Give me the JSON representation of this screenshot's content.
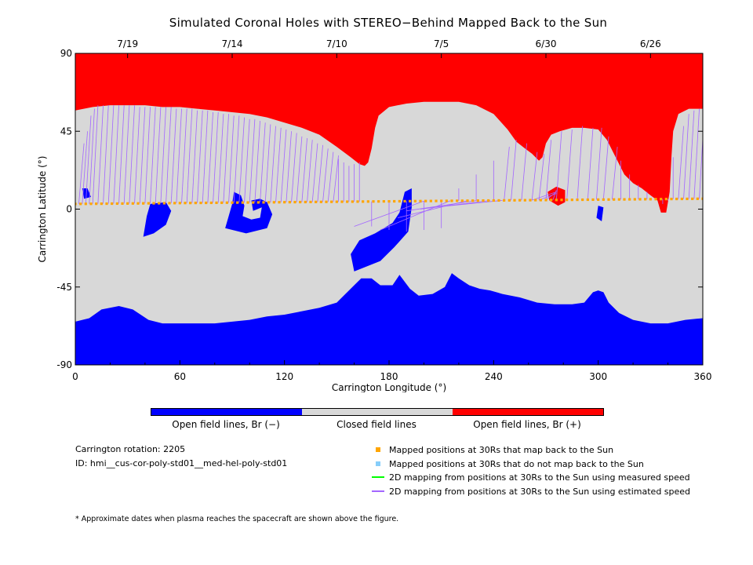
{
  "chart_data": {
    "type": "heatmap",
    "title": "Simulated Coronal Holes with STEREO−Behind Mapped Back to the Sun",
    "xlabel": "Carrington Longitude (°)",
    "ylabel": "Carrington Latitude (°)",
    "xlim": [
      0,
      360
    ],
    "ylim": [
      -90,
      90
    ],
    "x_ticks": [
      0,
      60,
      120,
      180,
      240,
      300,
      360
    ],
    "y_ticks": [
      90,
      45,
      0,
      -45,
      -90
    ],
    "top_axis_dates": [
      {
        "label": "7/19",
        "longitude": 30
      },
      {
        "label": "7/14",
        "longitude": 90
      },
      {
        "label": "7/10",
        "longitude": 150
      },
      {
        "label": "7/5",
        "longitude": 210
      },
      {
        "label": "6/30",
        "longitude": 270
      },
      {
        "label": "6/26",
        "longitude": 330
      }
    ],
    "categories": [
      "Open field lines, Br (−)",
      "Closed field lines",
      "Open field lines, Br (+)"
    ],
    "category_colors": [
      "#0000ff",
      "#d8d8d8",
      "#ff0000"
    ],
    "north_boundary": [
      [
        0,
        57
      ],
      [
        10,
        59
      ],
      [
        20,
        60
      ],
      [
        30,
        60
      ],
      [
        40,
        60
      ],
      [
        50,
        59
      ],
      [
        60,
        59
      ],
      [
        70,
        58
      ],
      [
        80,
        57
      ],
      [
        90,
        56
      ],
      [
        100,
        55
      ],
      [
        110,
        53
      ],
      [
        120,
        50
      ],
      [
        130,
        47
      ],
      [
        140,
        43
      ],
      [
        150,
        36
      ],
      [
        158,
        30
      ],
      [
        163,
        26
      ],
      [
        166,
        25
      ],
      [
        168,
        27
      ],
      [
        170,
        35
      ],
      [
        172,
        47
      ],
      [
        174,
        54
      ],
      [
        180,
        59
      ],
      [
        190,
        61
      ],
      [
        200,
        62
      ],
      [
        210,
        62
      ],
      [
        220,
        62
      ],
      [
        230,
        60
      ],
      [
        240,
        55
      ],
      [
        248,
        46
      ],
      [
        253,
        39
      ],
      [
        258,
        35
      ],
      [
        262,
        32
      ],
      [
        266,
        28
      ],
      [
        268,
        30
      ],
      [
        270,
        38
      ],
      [
        273,
        43
      ],
      [
        278,
        45
      ],
      [
        285,
        47
      ],
      [
        292,
        47
      ],
      [
        300,
        46
      ],
      [
        305,
        40
      ],
      [
        310,
        30
      ],
      [
        315,
        20
      ],
      [
        320,
        15
      ],
      [
        325,
        12
      ],
      [
        330,
        8
      ],
      [
        334,
        5
      ],
      [
        336,
        -2
      ],
      [
        339,
        -2
      ],
      [
        341,
        10
      ],
      [
        342,
        30
      ],
      [
        343,
        45
      ],
      [
        346,
        55
      ],
      [
        352,
        58
      ],
      [
        360,
        58
      ]
    ],
    "south_boundary": [
      [
        0,
        -65
      ],
      [
        8,
        -63
      ],
      [
        15,
        -58
      ],
      [
        25,
        -56
      ],
      [
        33,
        -58
      ],
      [
        42,
        -64
      ],
      [
        50,
        -66
      ],
      [
        60,
        -66
      ],
      [
        70,
        -66
      ],
      [
        80,
        -66
      ],
      [
        90,
        -65
      ],
      [
        100,
        -64
      ],
      [
        110,
        -62
      ],
      [
        120,
        -61
      ],
      [
        130,
        -59
      ],
      [
        140,
        -57
      ],
      [
        150,
        -54
      ],
      [
        160,
        -44
      ],
      [
        164,
        -40
      ],
      [
        170,
        -40
      ],
      [
        175,
        -44
      ],
      [
        182,
        -44
      ],
      [
        186,
        -38
      ],
      [
        192,
        -46
      ],
      [
        197,
        -50
      ],
      [
        205,
        -49
      ],
      [
        212,
        -45
      ],
      [
        216,
        -37
      ],
      [
        220,
        -40
      ],
      [
        226,
        -44
      ],
      [
        232,
        -46
      ],
      [
        238,
        -47
      ],
      [
        245,
        -49
      ],
      [
        255,
        -51
      ],
      [
        265,
        -54
      ],
      [
        275,
        -55
      ],
      [
        285,
        -55
      ],
      [
        292,
        -54
      ],
      [
        297,
        -48
      ],
      [
        300,
        -47
      ],
      [
        303,
        -48
      ],
      [
        306,
        -54
      ],
      [
        312,
        -60
      ],
      [
        320,
        -64
      ],
      [
        330,
        -66
      ],
      [
        340,
        -66
      ],
      [
        350,
        -64
      ],
      [
        360,
        -63
      ]
    ],
    "positive_patches": [
      [
        [
          271,
          10
        ],
        [
          276,
          13
        ],
        [
          281,
          11
        ],
        [
          281,
          4
        ],
        [
          277,
          2
        ],
        [
          272,
          5
        ]
      ]
    ],
    "negative_patches": [
      [
        [
          4,
          12
        ],
        [
          7,
          12
        ],
        [
          9,
          7
        ],
        [
          5,
          6
        ]
      ],
      [
        [
          43,
          3
        ],
        [
          52,
          4
        ],
        [
          55,
          -1
        ],
        [
          52,
          -9
        ],
        [
          45,
          -14
        ],
        [
          39,
          -16
        ],
        [
          40,
          -10
        ],
        [
          41,
          -4
        ]
      ],
      [
        [
          91,
          10
        ],
        [
          95,
          8
        ],
        [
          97,
          2
        ],
        [
          96,
          -4
        ],
        [
          101,
          -6
        ],
        [
          106,
          -5
        ],
        [
          107,
          1
        ],
        [
          102,
          -1
        ],
        [
          101,
          5
        ],
        [
          106,
          6
        ],
        [
          110,
          4
        ],
        [
          113,
          -3
        ],
        [
          110,
          -11
        ],
        [
          98,
          -14
        ],
        [
          86,
          -11
        ],
        [
          88,
          -4
        ],
        [
          90,
          3
        ]
      ],
      [
        [
          160,
          -36
        ],
        [
          175,
          -30
        ],
        [
          183,
          -22
        ],
        [
          191,
          -13
        ],
        [
          193,
          1
        ],
        [
          193,
          12
        ],
        [
          189,
          10
        ],
        [
          186,
          -2
        ],
        [
          182,
          -8
        ],
        [
          172,
          -14
        ],
        [
          163,
          -18
        ],
        [
          158,
          -26
        ]
      ],
      [
        [
          300,
          2
        ],
        [
          303,
          1
        ],
        [
          302,
          -7
        ],
        [
          299,
          -5
        ]
      ]
    ],
    "mapped_positions_30Rs": {
      "latitude_start": 3.0,
      "latitude_end": 6.0,
      "longitude_step": 3
    },
    "mapping_lines_estimated_speed": [
      [
        0,
        30
      ],
      [
        2,
        38
      ],
      [
        4,
        45
      ],
      [
        6,
        54
      ],
      [
        8,
        58
      ],
      [
        10,
        60
      ],
      [
        13,
        60
      ],
      [
        16,
        60
      ],
      [
        19,
        60
      ],
      [
        22,
        60
      ],
      [
        25,
        60
      ],
      [
        28,
        60
      ],
      [
        31,
        60
      ],
      [
        34,
        59
      ],
      [
        37,
        59
      ],
      [
        40,
        59
      ],
      [
        43,
        59
      ],
      [
        46,
        59
      ],
      [
        49,
        59
      ],
      [
        52,
        59
      ],
      [
        55,
        58
      ],
      [
        58,
        58
      ],
      [
        61,
        58
      ],
      [
        64,
        58
      ],
      [
        67,
        57
      ],
      [
        70,
        57
      ],
      [
        73,
        57
      ],
      [
        76,
        56
      ],
      [
        79,
        56
      ],
      [
        82,
        55
      ],
      [
        85,
        55
      ],
      [
        88,
        54
      ],
      [
        91,
        54
      ],
      [
        94,
        53
      ],
      [
        97,
        52
      ],
      [
        100,
        52
      ],
      [
        103,
        51
      ],
      [
        106,
        50
      ],
      [
        109,
        49
      ],
      [
        112,
        48
      ],
      [
        115,
        47
      ],
      [
        118,
        46
      ],
      [
        121,
        45
      ],
      [
        124,
        44
      ],
      [
        127,
        42
      ],
      [
        130,
        41
      ],
      [
        133,
        40
      ],
      [
        136,
        38
      ],
      [
        139,
        37
      ],
      [
        142,
        35
      ],
      [
        145,
        33
      ],
      [
        148,
        31
      ],
      [
        151,
        29
      ],
      [
        154,
        27
      ],
      [
        157,
        25
      ],
      [
        160,
        26
      ],
      [
        163,
        27
      ],
      [
        170,
        -10
      ],
      [
        180,
        -12
      ],
      [
        190,
        -13
      ],
      [
        200,
        -12
      ],
      [
        210,
        -11
      ],
      [
        220,
        12
      ],
      [
        230,
        20
      ],
      [
        240,
        28
      ],
      [
        246,
        36
      ],
      [
        250,
        40
      ],
      [
        256,
        38
      ],
      [
        262,
        33
      ],
      [
        266,
        32
      ],
      [
        270,
        40
      ],
      [
        276,
        45
      ],
      [
        282,
        46
      ],
      [
        288,
        48
      ],
      [
        294,
        47
      ],
      [
        299,
        47
      ],
      [
        303,
        42
      ],
      [
        308,
        36
      ],
      [
        313,
        28
      ],
      [
        318,
        20
      ],
      [
        323,
        14
      ],
      [
        328,
        10
      ],
      [
        333,
        6
      ],
      [
        337,
        3
      ],
      [
        340,
        5
      ],
      [
        343,
        30
      ],
      [
        346,
        48
      ],
      [
        349,
        55
      ],
      [
        352,
        57
      ],
      [
        355,
        58
      ],
      [
        358,
        58
      ]
    ],
    "mapping_lines_to_positive_patch": [
      [
        262,
        10
      ],
      [
        266,
        9
      ],
      [
        270,
        10
      ],
      [
        274,
        11
      ]
    ],
    "mapping_lines_to_center": [
      [
        160,
        -10
      ],
      [
        175,
        -12
      ],
      [
        185,
        -5
      ],
      [
        190,
        -1
      ],
      [
        198,
        0
      ],
      [
        205,
        1
      ]
    ]
  },
  "colorbar_labels": [
    "Open field lines, Br (−)",
    "Closed field lines",
    "Open field lines, Br (+)"
  ],
  "info": {
    "rotation": "Carrington rotation: 2205",
    "id": "ID: hmi__cus-cor-poly-std01__med-hel-poly-std01"
  },
  "legend": [
    {
      "text": "Mapped positions at 30Rs that map back to the Sun",
      "color": "#ffa500",
      "marker": "square"
    },
    {
      "text": "Mapped positions at 30Rs that do not map back to the Sun",
      "color": "#87cefa",
      "marker": "square"
    },
    {
      "text": "2D mapping from positions at 30Rs to the Sun using measured speed",
      "color": "#00ff00",
      "marker": "line"
    },
    {
      "text": "2D mapping from positions at 30Rs to the Sun using estimated speed",
      "color": "#a366ff",
      "marker": "line"
    }
  ],
  "footnote": "* Approximate dates when plasma reaches the spacecraft are shown above the figure."
}
